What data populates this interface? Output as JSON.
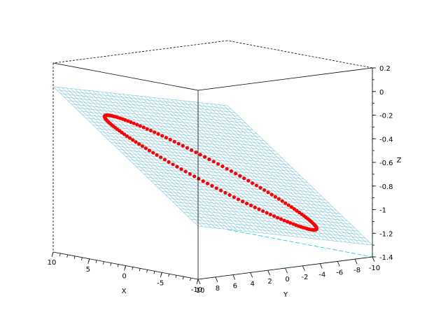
{
  "chart_data": {
    "type": "scatter",
    "title": "",
    "xlabel": "X",
    "ylabel": "Y",
    "zlabel": "Z",
    "xlim": [
      -10,
      10
    ],
    "ylim": [
      -10,
      10
    ],
    "zlim": [
      -1.4,
      0.2
    ],
    "x_ticks": [
      "10",
      "5",
      "0",
      "-5",
      "-10"
    ],
    "y_ticks": [
      "10",
      "8",
      "6",
      "4",
      "2",
      "0",
      "-2",
      "-4",
      "-6",
      "-8",
      "-10"
    ],
    "z_ticks": [
      "0.2",
      "0",
      "-0.2",
      "-0.4",
      "-0.6",
      "-0.8",
      "-1",
      "-1.2",
      "-1.4"
    ],
    "plane": {
      "z_at_x10_y10": 0.0,
      "z_at_xm10_y10": -0.95,
      "z_at_xm10_ym10": -1.3,
      "z_at_x10_ym10": -0.35,
      "color": "#7ec8d8"
    },
    "points": {
      "color": "#ff0000",
      "center": [
        -1.5,
        1.5
      ],
      "semi_major": 9.5,
      "semi_minor": 2.6,
      "rotation_deg": 40,
      "count": 150
    }
  }
}
